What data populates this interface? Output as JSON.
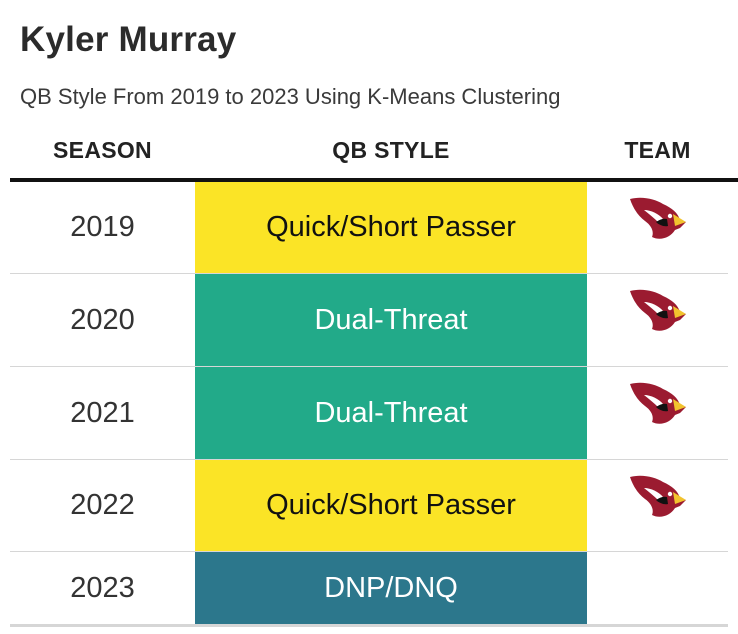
{
  "title": "Kyler Murray",
  "subtitle": "QB Style From 2019 to 2023 Using K-Means Clustering",
  "headers": {
    "season": "SEASON",
    "style": "QB STYLE",
    "team": "TEAM"
  },
  "colors": {
    "quick_short_passer": "#fbe426",
    "dual_threat": "#22aa89",
    "dnp": "#2c778c",
    "cardinals_red": "#9b1b30"
  },
  "rows": [
    {
      "season": "2019",
      "style": "Quick/Short Passer",
      "style_bg": "#fbe426",
      "style_color": "#111111",
      "team_icon": "cardinals-logo-icon"
    },
    {
      "season": "2020",
      "style": "Dual-Threat",
      "style_bg": "#22aa89",
      "style_color": "#ffffff",
      "team_icon": "cardinals-logo-icon"
    },
    {
      "season": "2021",
      "style": "Dual-Threat",
      "style_bg": "#22aa89",
      "style_color": "#ffffff",
      "team_icon": "cardinals-logo-icon"
    },
    {
      "season": "2022",
      "style": "Quick/Short Passer",
      "style_bg": "#fbe426",
      "style_color": "#111111",
      "team_icon": "cardinals-logo-icon"
    },
    {
      "season": "2023",
      "style": "DNP/DNQ",
      "style_bg": "#2c778c",
      "style_color": "#ffffff",
      "team_icon": ""
    }
  ]
}
